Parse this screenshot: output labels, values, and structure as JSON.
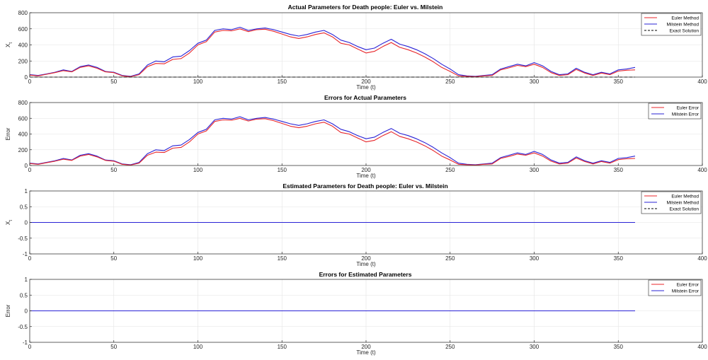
{
  "figure": {
    "panels": 4
  },
  "colors": {
    "euler": "#e8262a",
    "milstein": "#2a23d6",
    "exact": "#000000",
    "grid": "#e3e3e3",
    "axis": "#262626"
  },
  "chart_data": [
    {
      "type": "line",
      "title": "Actual Parameters for Death people: Euler vs. Milstein",
      "xlabel": "Time (t)",
      "ylabel": "X_t",
      "ylabel_main": "X",
      "ylabel_sub": "t",
      "xlim": [
        0,
        400
      ],
      "ylim": [
        0,
        800
      ],
      "xticks": [
        0,
        50,
        100,
        150,
        200,
        250,
        300,
        350,
        400
      ],
      "yticks": [
        0,
        200,
        400,
        600,
        800
      ],
      "ytick_labels": [
        "0",
        "200",
        "400",
        "600",
        "800"
      ],
      "grid": true,
      "legend_position": "top-right",
      "series": [
        {
          "name": "Milstein Method",
          "color": "#2a23d6",
          "style": "solid",
          "x": [
            0,
            5,
            10,
            15,
            20,
            25,
            30,
            35,
            40,
            45,
            50,
            55,
            60,
            65,
            70,
            75,
            80,
            85,
            90,
            95,
            100,
            105,
            110,
            115,
            120,
            125,
            130,
            135,
            140,
            145,
            150,
            155,
            160,
            165,
            170,
            175,
            180,
            185,
            190,
            195,
            200,
            205,
            210,
            215,
            220,
            225,
            230,
            235,
            240,
            245,
            250,
            255,
            260,
            265,
            270,
            275,
            280,
            285,
            290,
            295,
            300,
            305,
            310,
            315,
            320,
            325,
            330,
            335,
            340,
            345,
            350,
            355,
            360
          ],
          "y": [
            30,
            20,
            40,
            60,
            90,
            70,
            130,
            150,
            120,
            70,
            60,
            20,
            10,
            40,
            150,
            200,
            190,
            250,
            260,
            330,
            420,
            460,
            580,
            600,
            590,
            620,
            580,
            600,
            610,
            590,
            560,
            530,
            510,
            530,
            560,
            580,
            530,
            460,
            430,
            380,
            340,
            360,
            420,
            470,
            410,
            380,
            340,
            290,
            230,
            160,
            100,
            30,
            15,
            10,
            20,
            30,
            100,
            130,
            160,
            140,
            180,
            140,
            70,
            30,
            40,
            110,
            60,
            30,
            60,
            40,
            90,
            100,
            120
          ]
        },
        {
          "name": "Euler Method",
          "color": "#e8262a",
          "style": "solid",
          "x": [
            0,
            5,
            10,
            15,
            20,
            25,
            30,
            35,
            40,
            45,
            50,
            55,
            60,
            65,
            70,
            75,
            80,
            85,
            90,
            95,
            100,
            105,
            110,
            115,
            120,
            125,
            130,
            135,
            140,
            145,
            150,
            155,
            160,
            165,
            170,
            175,
            180,
            185,
            190,
            195,
            200,
            205,
            210,
            215,
            220,
            225,
            230,
            235,
            240,
            245,
            250,
            255,
            260,
            265,
            270,
            275,
            280,
            285,
            290,
            295,
            300,
            305,
            310,
            315,
            320,
            325,
            330,
            335,
            340,
            345,
            350,
            355,
            360
          ],
          "y": [
            25,
            15,
            35,
            55,
            80,
            65,
            120,
            140,
            110,
            65,
            55,
            15,
            5,
            30,
            130,
            170,
            165,
            220,
            230,
            300,
            400,
            440,
            560,
            580,
            575,
            600,
            565,
            590,
            595,
            570,
            535,
            500,
            480,
            500,
            530,
            550,
            500,
            420,
            400,
            350,
            300,
            320,
            380,
            430,
            370,
            340,
            300,
            250,
            190,
            120,
            70,
            15,
            10,
            5,
            15,
            20,
            90,
            115,
            145,
            130,
            160,
            120,
            55,
            20,
            30,
            95,
            50,
            20,
            50,
            30,
            75,
            85,
            90
          ]
        },
        {
          "name": "Exact Solution",
          "color": "#000000",
          "style": "dashed",
          "x": [
            0,
            360
          ],
          "y": [
            0,
            0
          ]
        }
      ],
      "legend_order": [
        "Euler Method",
        "Milstein Method",
        "Exact Solution"
      ]
    },
    {
      "type": "line",
      "title": "Errors for Actual Parameters",
      "xlabel": "Time (t)",
      "ylabel": "Error",
      "xlim": [
        0,
        400
      ],
      "ylim": [
        0,
        800
      ],
      "xticks": [
        0,
        50,
        100,
        150,
        200,
        250,
        300,
        350,
        400
      ],
      "yticks": [
        0,
        200,
        400,
        600,
        800
      ],
      "ytick_labels": [
        "0",
        "200",
        "400",
        "600",
        "800"
      ],
      "grid": true,
      "legend_position": "top-right",
      "series": [
        {
          "name": "Milstein Error",
          "color": "#2a23d6",
          "style": "solid",
          "x": [
            0,
            5,
            10,
            15,
            20,
            25,
            30,
            35,
            40,
            45,
            50,
            55,
            60,
            65,
            70,
            75,
            80,
            85,
            90,
            95,
            100,
            105,
            110,
            115,
            120,
            125,
            130,
            135,
            140,
            145,
            150,
            155,
            160,
            165,
            170,
            175,
            180,
            185,
            190,
            195,
            200,
            205,
            210,
            215,
            220,
            225,
            230,
            235,
            240,
            245,
            250,
            255,
            260,
            265,
            270,
            275,
            280,
            285,
            290,
            295,
            300,
            305,
            310,
            315,
            320,
            325,
            330,
            335,
            340,
            345,
            350,
            355,
            360
          ],
          "y": [
            30,
            20,
            40,
            60,
            90,
            70,
            130,
            150,
            120,
            70,
            60,
            20,
            10,
            40,
            150,
            200,
            190,
            250,
            260,
            330,
            420,
            460,
            580,
            600,
            590,
            620,
            580,
            600,
            610,
            590,
            560,
            530,
            510,
            530,
            560,
            580,
            530,
            460,
            430,
            380,
            340,
            360,
            420,
            470,
            410,
            380,
            340,
            290,
            230,
            160,
            100,
            30,
            15,
            10,
            20,
            30,
            100,
            130,
            160,
            140,
            180,
            140,
            70,
            30,
            40,
            110,
            60,
            30,
            60,
            40,
            90,
            100,
            120
          ]
        },
        {
          "name": "Euler Error",
          "color": "#e8262a",
          "style": "solid",
          "x": [
            0,
            5,
            10,
            15,
            20,
            25,
            30,
            35,
            40,
            45,
            50,
            55,
            60,
            65,
            70,
            75,
            80,
            85,
            90,
            95,
            100,
            105,
            110,
            115,
            120,
            125,
            130,
            135,
            140,
            145,
            150,
            155,
            160,
            165,
            170,
            175,
            180,
            185,
            190,
            195,
            200,
            205,
            210,
            215,
            220,
            225,
            230,
            235,
            240,
            245,
            250,
            255,
            260,
            265,
            270,
            275,
            280,
            285,
            290,
            295,
            300,
            305,
            310,
            315,
            320,
            325,
            330,
            335,
            340,
            345,
            350,
            355,
            360
          ],
          "y": [
            25,
            15,
            35,
            55,
            80,
            65,
            120,
            140,
            110,
            65,
            55,
            15,
            5,
            30,
            130,
            170,
            165,
            220,
            230,
            300,
            400,
            440,
            560,
            580,
            575,
            600,
            565,
            590,
            595,
            570,
            535,
            500,
            480,
            500,
            530,
            550,
            500,
            420,
            400,
            350,
            300,
            320,
            380,
            430,
            370,
            340,
            300,
            250,
            190,
            120,
            70,
            15,
            10,
            5,
            15,
            20,
            90,
            115,
            145,
            130,
            160,
            120,
            55,
            20,
            30,
            95,
            50,
            20,
            50,
            30,
            75,
            85,
            90
          ]
        }
      ],
      "legend_order": [
        "Euler Error",
        "Milstein Error"
      ]
    },
    {
      "type": "line",
      "title": "Estimated Parameters for Death people: Euler vs. Milstein",
      "xlabel": "Time (t)",
      "ylabel": "X_t",
      "ylabel_main": "X",
      "ylabel_sub": "t",
      "xlim": [
        0,
        400
      ],
      "ylim": [
        -1,
        1
      ],
      "xticks": [
        0,
        50,
        100,
        150,
        200,
        250,
        300,
        350,
        400
      ],
      "yticks": [
        -1,
        -0.5,
        0,
        0.5,
        1
      ],
      "ytick_labels": [
        "-1",
        "-0.5",
        "0",
        "0.5",
        "1"
      ],
      "grid": true,
      "legend_position": "top-right",
      "series": [
        {
          "name": "Euler Method",
          "color": "#e8262a",
          "style": "solid",
          "x": [
            0,
            360
          ],
          "y": [
            0,
            0
          ]
        },
        {
          "name": "Exact Solution",
          "color": "#000000",
          "style": "dashed",
          "x": [
            0,
            360
          ],
          "y": [
            0,
            0
          ]
        },
        {
          "name": "Milstein Method",
          "color": "#2a23d6",
          "style": "solid",
          "x": [
            0,
            360
          ],
          "y": [
            0,
            0
          ]
        }
      ],
      "legend_order": [
        "Euler Method",
        "Milstein Method",
        "Exact Solution"
      ]
    },
    {
      "type": "line",
      "title": "Errors for Estimated Parameters",
      "xlabel": "Time (t)",
      "ylabel": "Error",
      "xlim": [
        0,
        400
      ],
      "ylim": [
        -1,
        1
      ],
      "xticks": [
        0,
        50,
        100,
        150,
        200,
        250,
        300,
        350,
        400
      ],
      "yticks": [
        -1,
        -0.5,
        0,
        0.5,
        1
      ],
      "ytick_labels": [
        "-1",
        "-0.5",
        "0",
        "0.5",
        "1"
      ],
      "grid": true,
      "legend_position": "top-right",
      "series": [
        {
          "name": "Euler Error",
          "color": "#e8262a",
          "style": "solid",
          "x": [
            0,
            360
          ],
          "y": [
            0,
            0
          ]
        },
        {
          "name": "Milstein Error",
          "color": "#2a23d6",
          "style": "solid",
          "x": [
            0,
            360
          ],
          "y": [
            0,
            0
          ]
        }
      ],
      "legend_order": [
        "Euler Error",
        "Milstein Error"
      ]
    }
  ]
}
